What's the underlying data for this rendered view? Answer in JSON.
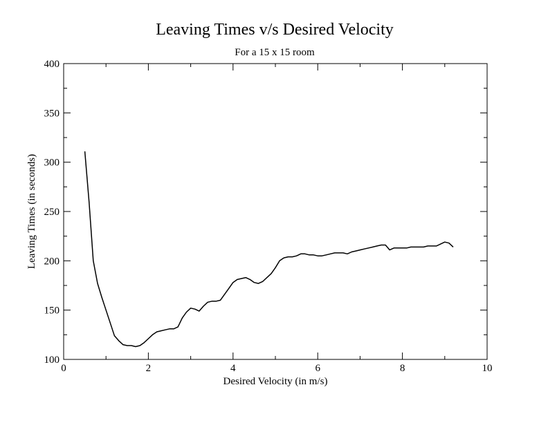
{
  "chart_data": {
    "type": "line",
    "title": "Leaving Times v/s Desired Velocity",
    "subtitle": "For a 15 x 15 room",
    "xlabel": "Desired Velocity (in m/s)",
    "ylabel": "Leaving Times (in seconds)",
    "xlim": [
      0,
      10
    ],
    "ylim": [
      100,
      400
    ],
    "x_ticks": [
      "0",
      "2",
      "4",
      "6",
      "8",
      "10"
    ],
    "y_ticks": [
      "100",
      "150",
      "200",
      "250",
      "300",
      "350",
      "400"
    ],
    "grid": false,
    "line_color": "#000000",
    "series": [
      {
        "x": [
          0.5,
          0.6,
          0.7,
          0.8,
          0.9,
          1.0,
          1.1,
          1.2,
          1.3,
          1.4,
          1.5,
          1.6,
          1.7,
          1.8,
          1.9,
          2.0,
          2.1,
          2.2,
          2.3,
          2.4,
          2.5,
          2.6,
          2.7,
          2.8,
          2.9,
          3.0,
          3.1,
          3.2,
          3.3,
          3.4,
          3.5,
          3.6,
          3.7,
          3.8,
          3.9,
          4.0,
          4.1,
          4.2,
          4.3,
          4.4,
          4.5,
          4.6,
          4.7,
          4.8,
          4.9,
          5.0,
          5.1,
          5.2,
          5.3,
          5.4,
          5.5,
          5.6,
          5.7,
          5.8,
          5.9,
          6.0,
          6.1,
          6.2,
          6.3,
          6.4,
          6.5,
          6.6,
          6.7,
          6.8,
          6.9,
          7.0,
          7.1,
          7.2,
          7.3,
          7.4,
          7.5,
          7.6,
          7.7,
          7.8,
          7.9,
          8.0,
          8.1,
          8.2,
          8.3,
          8.4,
          8.5,
          8.6,
          8.7,
          8.8,
          8.9,
          9.0,
          9.1,
          9.2
        ],
        "y": [
          311,
          260,
          200,
          177,
          163,
          150,
          137,
          124,
          119,
          115,
          114,
          114,
          113,
          114,
          117,
          121,
          125,
          128,
          129,
          130,
          131,
          131,
          133,
          142,
          148,
          152,
          151,
          149,
          154,
          158,
          159,
          159,
          160,
          166,
          172,
          178,
          181,
          182,
          183,
          181,
          178,
          177,
          179,
          183,
          187,
          193,
          200,
          203,
          204,
          204,
          205,
          207,
          207,
          206,
          206,
          205,
          205,
          206,
          207,
          208,
          208,
          208,
          207,
          209,
          210,
          211,
          212,
          213,
          214,
          215,
          216,
          216,
          211,
          213,
          213,
          213,
          213,
          214,
          214,
          214,
          214,
          215,
          215,
          215,
          217,
          219,
          218,
          214
        ]
      }
    ]
  }
}
